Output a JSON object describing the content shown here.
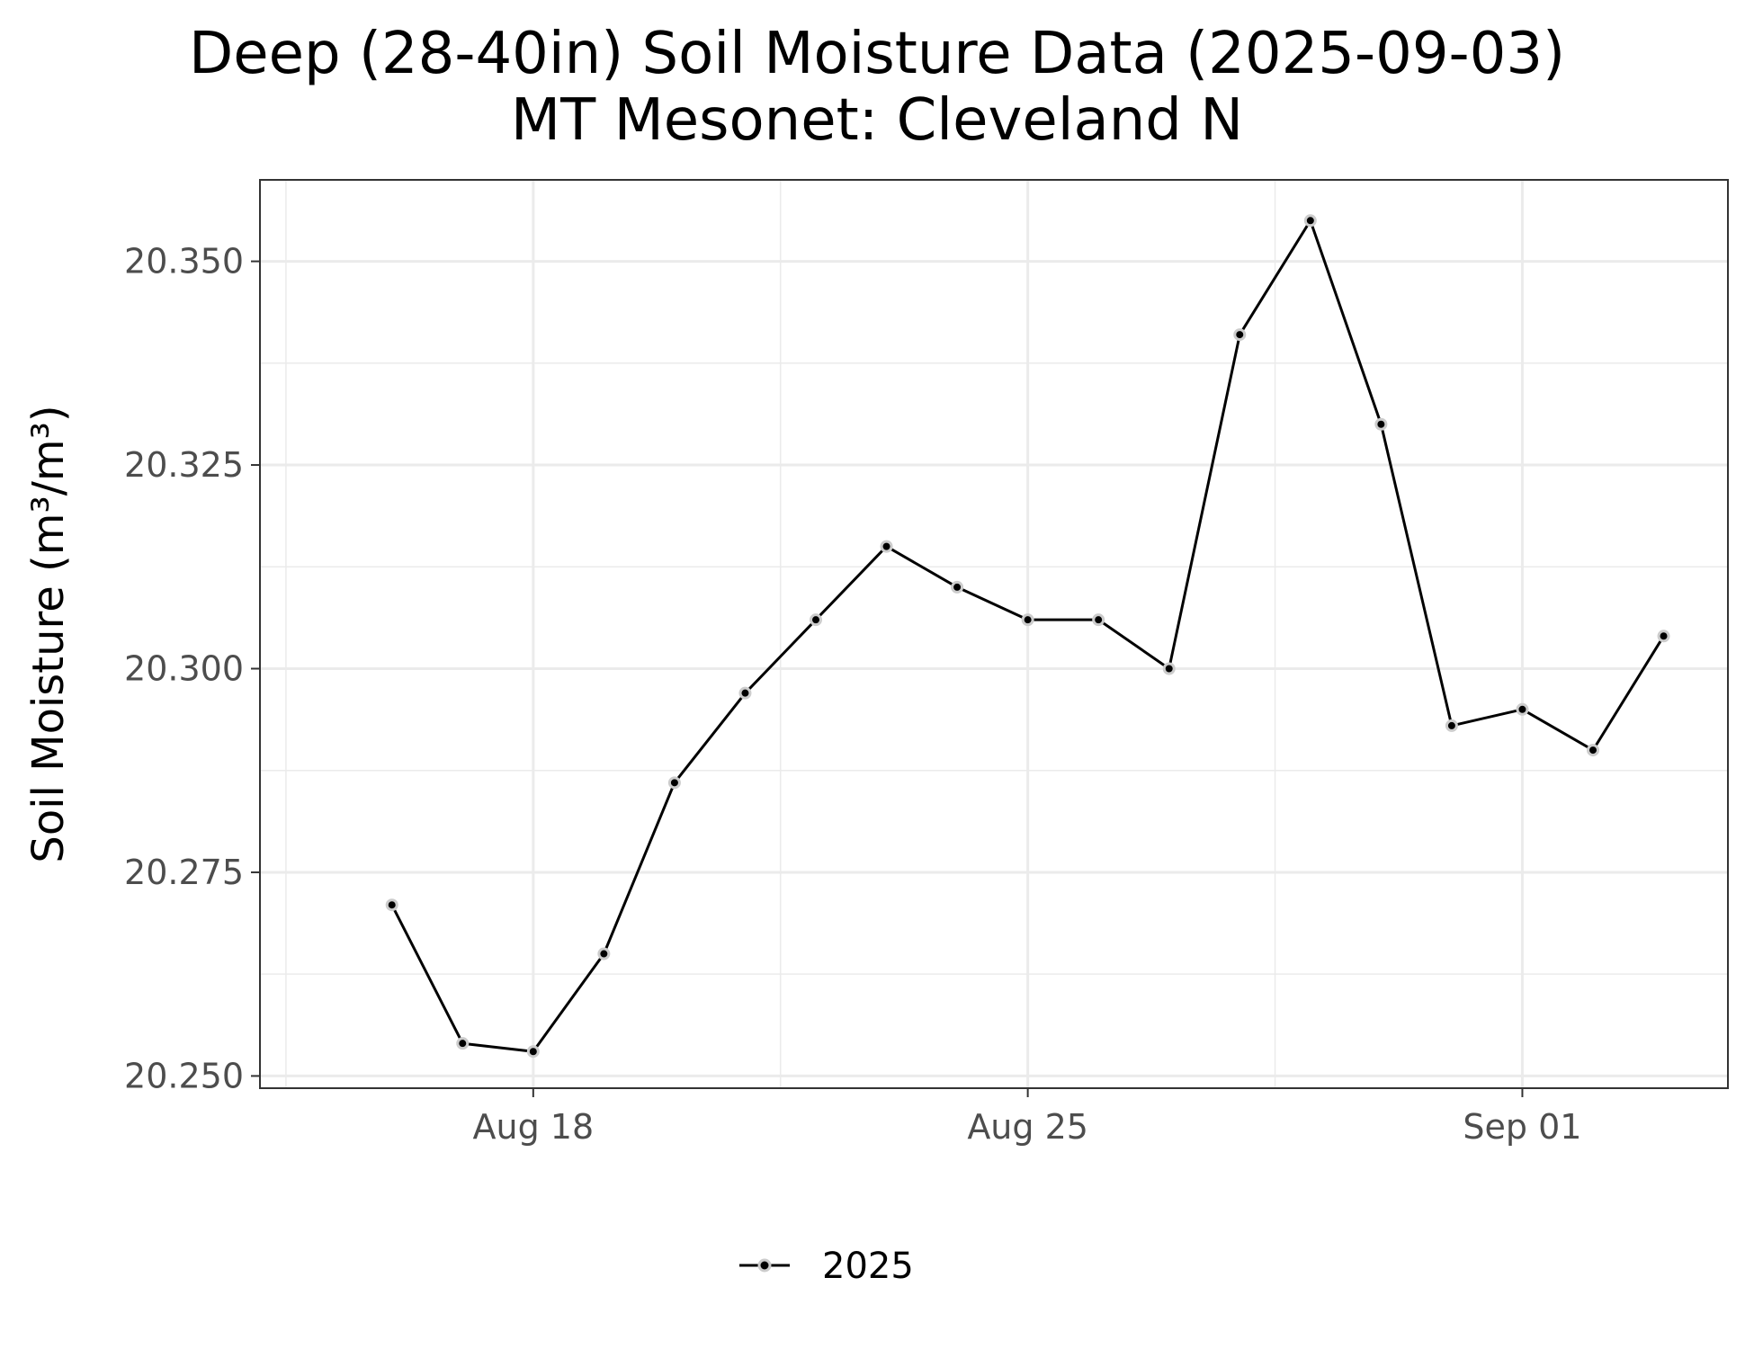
{
  "chart_data": {
    "type": "line",
    "title": "Deep (28-40in) Soil Moisture Data (2025-09-03)",
    "subtitle": "MT Mesonet: Cleveland N",
    "xlabel": "",
    "ylabel": "Soil Moisture (m³/m³)",
    "x_ticks": [
      "Aug 18",
      "Aug 25",
      "Sep 01"
    ],
    "y_ticks": [
      "20.250",
      "20.275",
      "20.300",
      "20.325",
      "20.350"
    ],
    "ylim": [
      20.2485,
      20.36
    ],
    "xlim": [
      "2025-08-14T03:10",
      "2025-09-03T21:50"
    ],
    "grid": true,
    "legend_position": "bottom",
    "x": [
      "2025-08-16",
      "2025-08-17",
      "2025-08-18",
      "2025-08-19",
      "2025-08-20",
      "2025-08-21",
      "2025-08-22",
      "2025-08-23",
      "2025-08-24",
      "2025-08-25",
      "2025-08-26",
      "2025-08-27",
      "2025-08-28",
      "2025-08-29",
      "2025-08-30",
      "2025-08-31",
      "2025-09-01",
      "2025-09-02",
      "2025-09-03"
    ],
    "series": [
      {
        "name": "2025",
        "color": "#000000",
        "marker_fill": "#000000",
        "marker_outline": "#cccccc",
        "values": [
          20.271,
          20.254,
          20.253,
          20.265,
          20.286,
          20.297,
          20.306,
          20.315,
          20.31,
          20.306,
          20.306,
          20.3,
          20.341,
          20.355,
          20.33,
          20.293,
          20.295,
          20.29,
          20.304
        ]
      }
    ]
  }
}
